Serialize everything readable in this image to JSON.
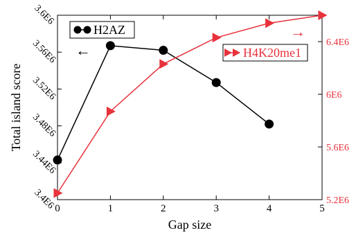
{
  "chart_data": {
    "type": "line",
    "xlabel": "Gap size",
    "ylabel": "Total island score",
    "xlim": [
      0,
      5
    ],
    "x_ticks": [
      "0",
      "1",
      "2",
      "3",
      "4",
      "5"
    ],
    "y_left": {
      "lim": [
        3400000,
        3600000
      ],
      "ticks": [
        3400000,
        3440000,
        3480000,
        3520000,
        3560000,
        3600000
      ],
      "tick_labels": [
        "3.4E6",
        "3.44E6",
        "3.48E6",
        "3.52E6",
        "3.56E6",
        "3.6E6"
      ],
      "color": "#000000"
    },
    "y_right": {
      "lim": [
        5200000,
        6600000
      ],
      "ticks": [
        5200000,
        5600000,
        6000000,
        6400000
      ],
      "tick_labels": [
        "5.2E6",
        "5.6E6",
        "6E6",
        "6.4E6"
      ],
      "color": "#e8323c"
    },
    "series": [
      {
        "name": "H2AZ",
        "axis": "left",
        "color": "#000000",
        "marker": "circle",
        "x": [
          0,
          1,
          2,
          3,
          4
        ],
        "y": [
          3443000,
          3567000,
          3562000,
          3527000,
          3482000
        ]
      },
      {
        "name": "H4K20me1",
        "axis": "right",
        "color": "#e8323c",
        "marker": "triangle-right",
        "x": [
          0,
          1,
          2,
          3,
          4,
          5
        ],
        "y": [
          5250000,
          5870000,
          6230000,
          6430000,
          6540000,
          6600000
        ]
      }
    ],
    "annotations": [
      {
        "text": "←",
        "axis": "left",
        "meaning": "arrow points to left axis"
      },
      {
        "text": "→",
        "axis": "right",
        "meaning": "arrow points to right axis"
      }
    ],
    "grid": false,
    "legend_placement": "top-left (H2AZ), top-right (H4K20me1)"
  }
}
